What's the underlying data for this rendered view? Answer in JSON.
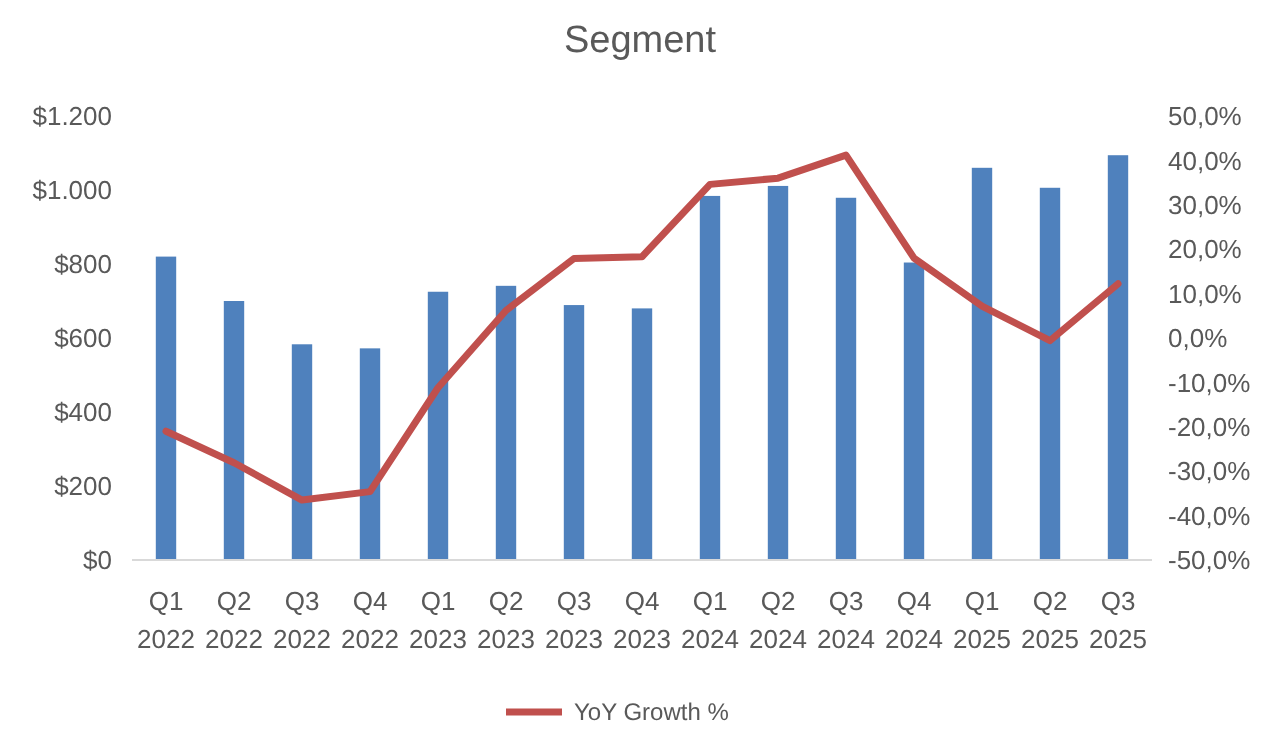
{
  "chart_data": {
    "type": "bar",
    "title": "Segment",
    "categories": [
      "Q1 2022",
      "Q2 2022",
      "Q3 2022",
      "Q4 2022",
      "Q1 2023",
      "Q2 2023",
      "Q3 2023",
      "Q4 2023",
      "Q1 2024",
      "Q2 2024",
      "Q3 2024",
      "Q4 2024",
      "Q1 2025",
      "Q2 2025",
      "Q3 2025"
    ],
    "series": [
      {
        "color": "#4f81bd",
        "values": [
          820,
          700,
          583,
          572,
          725,
          741,
          689,
          680,
          984,
          1011,
          979,
          804,
          1060,
          1006,
          1094
        ]
      },
      {
        "type": "line",
        "name": "YoY Growth %",
        "color": "#c0504d",
        "axis": "y2",
        "values": [
          -21.0,
          -28.1,
          -36.5,
          -34.6,
          -11.2,
          6.2,
          17.9,
          18.3,
          34.6,
          36.0,
          41.2,
          18.0,
          7.2,
          -0.6,
          12.2
        ]
      }
    ],
    "ylim": [
      0,
      1200
    ],
    "yticks": [
      {
        "value": 0,
        "label": "$0"
      },
      {
        "value": 200,
        "label": "$200"
      },
      {
        "value": 400,
        "label": "$400"
      },
      {
        "value": 600,
        "label": "$600"
      },
      {
        "value": 800,
        "label": "$800"
      },
      {
        "value": 1000,
        "label": "$1.000"
      },
      {
        "value": 1200,
        "label": "$1.200"
      }
    ],
    "y2lim": [
      -50,
      50
    ],
    "y2ticks": [
      {
        "value": -50,
        "label": "-50,0%"
      },
      {
        "value": -40,
        "label": "-40,0%"
      },
      {
        "value": -30,
        "label": "-30,0%"
      },
      {
        "value": -20,
        "label": "-20,0%"
      },
      {
        "value": -10,
        "label": "-10,0%"
      },
      {
        "value": 0,
        "label": "0,0%"
      },
      {
        "value": 10,
        "label": "10,0%"
      },
      {
        "value": 20,
        "label": "20,0%"
      },
      {
        "value": 30,
        "label": "30,0%"
      },
      {
        "value": 40,
        "label": "40,0%"
      },
      {
        "value": 50,
        "label": "50,0%"
      }
    ],
    "legend": "bottom",
    "grid": false
  }
}
